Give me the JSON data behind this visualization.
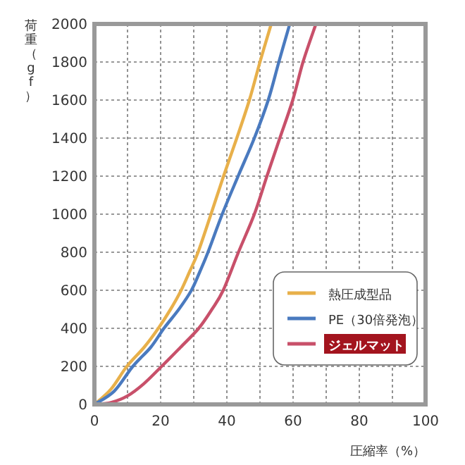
{
  "chart_data": {
    "type": "line",
    "xlabel": "圧縮率（%）",
    "ylabel": "荷重（gf）",
    "xlim": [
      0,
      100
    ],
    "ylim": [
      0,
      2000
    ],
    "xticks": [
      0,
      {
        "value": 10,
        "label": null
      },
      20,
      {
        "value": 30,
        "label": null
      },
      40,
      {
        "value": 50,
        "label": null
      },
      60,
      {
        "value": 70,
        "label": null
      },
      80,
      {
        "value": 90,
        "label": null
      },
      100
    ],
    "yticks": [
      0,
      200,
      400,
      600,
      800,
      1000,
      1200,
      1400,
      1600,
      1800,
      2000
    ],
    "grid": true,
    "legend": "bottom right",
    "line_style": "solid",
    "series": [
      {
        "name": "熱圧成型品",
        "color": "#e8b04a",
        "x": [
          0,
          5,
          9.8,
          15,
          19.3,
          23,
          26.2,
          28.8,
          31.3,
          35.2,
          39,
          43,
          46.8,
          50,
          53.4
        ],
        "values": [
          0,
          80,
          200,
          300,
          400,
          500,
          600,
          700,
          800,
          1000,
          1200,
          1400,
          1600,
          1800,
          2000
        ]
      },
      {
        "name": "PE（30倍発泡）",
        "color": "#4a7abf",
        "x": [
          0,
          6,
          11.6,
          17,
          21,
          25.5,
          29.3,
          31.9,
          34.3,
          38.6,
          43.4,
          48.3,
          52.5,
          55.7,
          59
        ],
        "values": [
          0,
          70,
          200,
          300,
          400,
          500,
          600,
          700,
          800,
          1000,
          1200,
          1400,
          1600,
          1800,
          2000
        ]
      },
      {
        "name": "ジェルマット",
        "color": "#c8506a",
        "x": [
          0,
          5,
          10,
          15,
          20.3,
          26,
          31.5,
          35.5,
          38.9,
          43.5,
          48.3,
          52.1,
          56,
          59.9,
          63,
          66.9
        ],
        "values": [
          0,
          10,
          45,
          110,
          200,
          300,
          400,
          500,
          600,
          800,
          1000,
          1200,
          1400,
          1600,
          1800,
          2000
        ]
      }
    ]
  }
}
